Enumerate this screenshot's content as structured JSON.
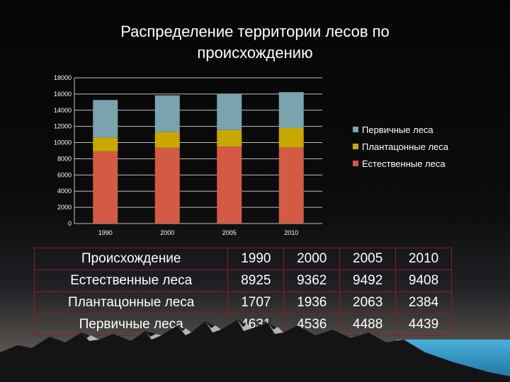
{
  "title": "Распределение территории лесов по происхождению",
  "colors": {
    "natural": "#d35a44",
    "plantation": "#c8a800",
    "primary": "#7aa3ad",
    "gridline": "#c0c0c0",
    "table_border": "#8b1e1e"
  },
  "chart_data": {
    "type": "bar",
    "stacked": true,
    "title": "Распределение территории лесов по происхождению",
    "xlabel": "",
    "ylabel": "",
    "categories": [
      "1990",
      "2000",
      "2005",
      "2010"
    ],
    "series": [
      {
        "name": "Естественные леса",
        "values": [
          8925,
          9362,
          9492,
          9408
        ]
      },
      {
        "name": "Плантацонные леса",
        "values": [
          1707,
          1936,
          2063,
          2384
        ]
      },
      {
        "name": "Первичные леса",
        "values": [
          4631,
          4536,
          4488,
          4439
        ]
      }
    ],
    "ylim": [
      0,
      18000
    ],
    "yticks": [
      "0",
      "2000",
      "4000",
      "6000",
      "8000",
      "10000",
      "12000",
      "14000",
      "16000",
      "18000"
    ],
    "grid": true,
    "legend_position": "right"
  },
  "legend": [
    {
      "label": "Первичные леса",
      "color_key": "primary"
    },
    {
      "label": "Плантацонные леса",
      "color_key": "plantation"
    },
    {
      "label": "Естественные леса",
      "color_key": "natural"
    }
  ],
  "table": {
    "header": [
      "Происхождение",
      "1990",
      "2000",
      "2005",
      "2010"
    ],
    "rows": [
      [
        "Естественные леса",
        "8925",
        "9362",
        "9492",
        "9408"
      ],
      [
        "Плантацонные леса",
        "1707",
        "1936",
        "2063",
        "2384"
      ],
      [
        "Первичные леса",
        "4631",
        "4536",
        "4488",
        "4439"
      ]
    ]
  }
}
